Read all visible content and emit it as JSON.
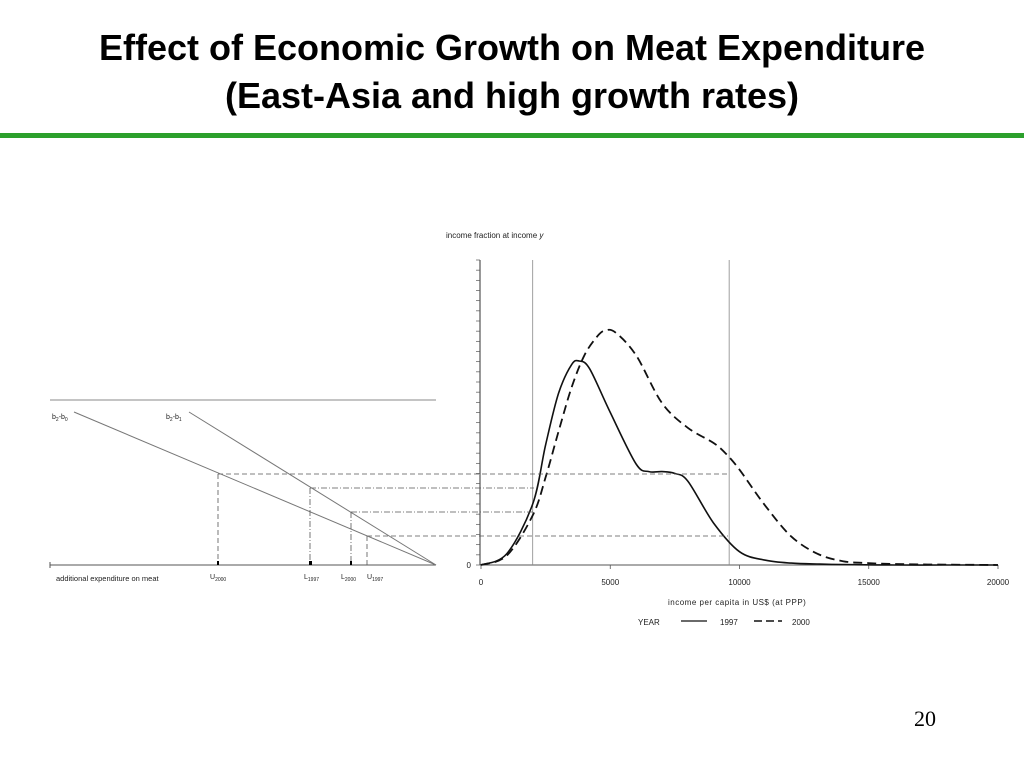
{
  "slide": {
    "title_line1": "Effect of Economic Growth on Meat Expenditure",
    "title_line2": "(East-Asia and high growth rates)",
    "accent_color": "#2ca02c",
    "page_number": "20"
  },
  "chart_data": [
    {
      "type": "line",
      "ylabel_main": "income fraction at income ",
      "ylabel_var": "y",
      "xlabel": "income per capita in US$ (at PPP)",
      "x_ticks": [
        0,
        5000,
        10000,
        15000,
        20000
      ],
      "x_tick_labels": [
        "0",
        "5000",
        "10000",
        "15000",
        "20000"
      ],
      "xlim": [
        0,
        20000
      ],
      "y_zero_label": "0",
      "legend_title": "YEAR",
      "legend_position": "bottom",
      "reference_incomes": [
        2000,
        9600
      ],
      "series": [
        {
          "name": "1997",
          "style": "solid",
          "x": [
            0,
            1000,
            2000,
            2500,
            3000,
            3500,
            3800,
            4200,
            5000,
            6000,
            6500,
            7000,
            7500,
            8000,
            9000,
            10000,
            11000,
            12000,
            13000,
            14000,
            16000,
            18000,
            20000
          ],
          "y": [
            0,
            0.6,
            3.2,
            6.3,
            9.0,
            10.5,
            10.7,
            10.3,
            8.0,
            5.3,
            4.9,
            4.9,
            4.8,
            4.4,
            2.2,
            0.7,
            0.25,
            0.1,
            0.05,
            0.02,
            0,
            0,
            0
          ]
        },
        {
          "name": "2000",
          "style": "dashed",
          "x": [
            0,
            1000,
            2000,
            2500,
            3000,
            3500,
            4000,
            4500,
            4800,
            5200,
            6000,
            7000,
            8000,
            9000,
            9500,
            10000,
            11000,
            12000,
            13000,
            14000,
            15000,
            16000,
            18000,
            20000
          ],
          "y": [
            0,
            0.5,
            2.6,
            4.6,
            7.0,
            9.3,
            11.0,
            12.0,
            12.3,
            12.2,
            11.0,
            8.5,
            7.2,
            6.4,
            5.8,
            5.0,
            3.1,
            1.5,
            0.6,
            0.2,
            0.1,
            0.05,
            0.02,
            0
          ]
        }
      ]
    },
    {
      "type": "line",
      "xlabel": "additional expenditure on meat",
      "line_labels": [
        {
          "base": "b",
          "s1": "2",
          "mid": "-b",
          "s2": "0"
        },
        {
          "base": "b",
          "s1": "2",
          "mid": "-b",
          "s2": "1"
        }
      ],
      "markers": [
        {
          "base": "U",
          "sub": "2000"
        },
        {
          "base": "L",
          "sub": "1997"
        },
        {
          "base": "L",
          "sub": "2000"
        },
        {
          "base": "U",
          "sub": "1997"
        }
      ]
    }
  ]
}
